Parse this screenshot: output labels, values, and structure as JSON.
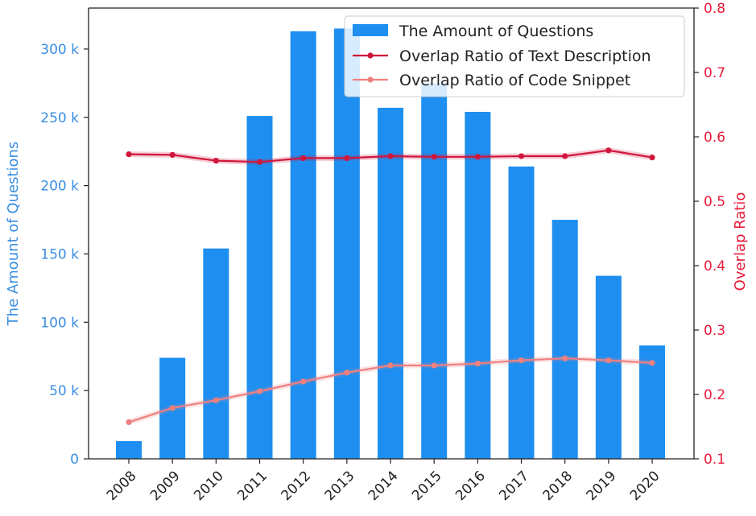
{
  "chart_data": {
    "type": "bar+line",
    "categories": [
      "2008",
      "2009",
      "2010",
      "2011",
      "2012",
      "2013",
      "2014",
      "2015",
      "2016",
      "2017",
      "2018",
      "2019",
      "2020"
    ],
    "bar_series": {
      "name": "The Amount of Questions",
      "values": [
        13000,
        74000,
        154000,
        251000,
        313000,
        315000,
        257000,
        275000,
        254000,
        214000,
        175000,
        134000,
        83000
      ]
    },
    "line_series": [
      {
        "name": "Overlap Ratio of Text Description",
        "values": [
          0.573,
          0.572,
          0.563,
          0.561,
          0.567,
          0.567,
          0.57,
          0.569,
          0.569,
          0.57,
          0.57,
          0.579,
          0.568
        ]
      },
      {
        "name": "Overlap Ratio of Code Snippet",
        "values": [
          0.157,
          0.179,
          0.191,
          0.205,
          0.22,
          0.234,
          0.245,
          0.245,
          0.248,
          0.253,
          0.256,
          0.253,
          0.249
        ]
      }
    ],
    "ylabel_left": "The Amount of Questions",
    "ylabel_right": "Overlap Ratio",
    "ylim_left": [
      0,
      330000
    ],
    "ylim_right": [
      0.1,
      0.8
    ],
    "yticks_left": [
      {
        "value": 0,
        "label": "0"
      },
      {
        "value": 50000,
        "label": "50 k"
      },
      {
        "value": 100000,
        "label": "100 k"
      },
      {
        "value": 150000,
        "label": "150 k"
      },
      {
        "value": 200000,
        "label": "200 k"
      },
      {
        "value": 250000,
        "label": "250 k"
      },
      {
        "value": 300000,
        "label": "300 k"
      }
    ],
    "yticks_right": [
      {
        "value": 0.1,
        "label": "0.1"
      },
      {
        "value": 0.2,
        "label": "0.2"
      },
      {
        "value": 0.3,
        "label": "0.3"
      },
      {
        "value": 0.4,
        "label": "0.4"
      },
      {
        "value": 0.5,
        "label": "0.5"
      },
      {
        "value": 0.6,
        "label": "0.6"
      },
      {
        "value": 0.7,
        "label": "0.7"
      },
      {
        "value": 0.8,
        "label": "0.8"
      }
    ],
    "legend_position": "top-right",
    "colors": {
      "bar": "#1e8ff0",
      "text_line": "#d0163c",
      "code_line": "#f08080",
      "left_axis": "#3a8ee0",
      "right_axis": "#ea1a3a"
    }
  }
}
